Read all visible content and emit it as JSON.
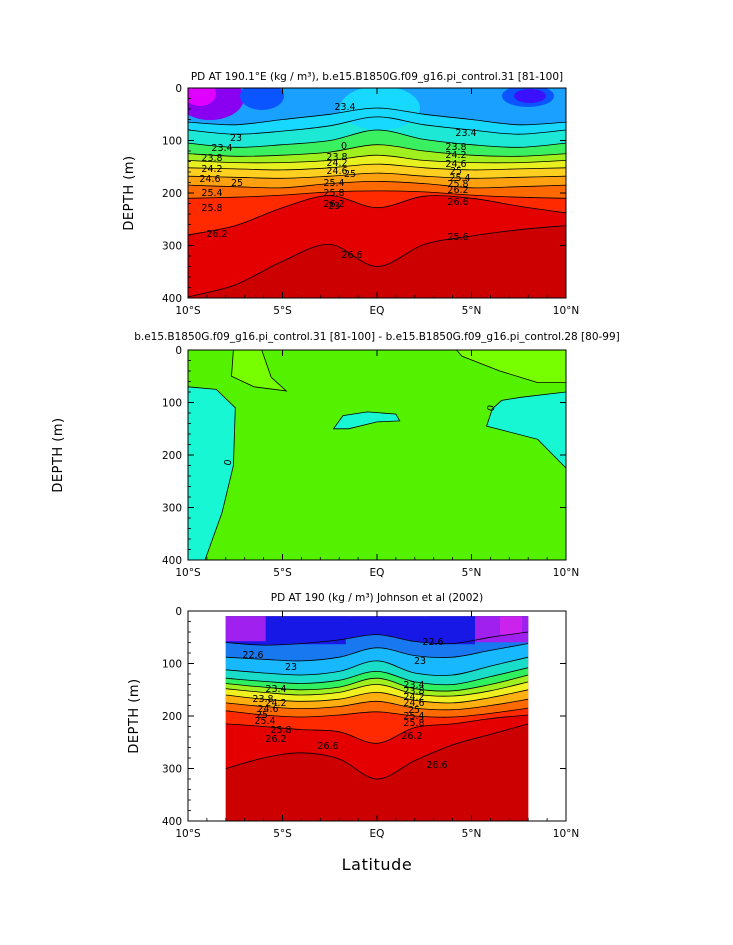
{
  "figure_xlabel": "Latitude",
  "colors": {
    "panel1_bands": [
      "#e000ff",
      "#8a00f0",
      "#3a10ff",
      "#0a55ff",
      "#1aa0ff",
      "#17d8ff",
      "#1de8d6",
      "#3af060",
      "#a0f020",
      "#e8f020",
      "#ffd020",
      "#ffa010",
      "#ff6a00",
      "#ff2a00",
      "#e40000",
      "#cc0000"
    ],
    "panel2": {
      "main": "#55f200",
      "low": "#18f7d3",
      "high": "#77ff00"
    },
    "panel3_bands": [
      "#a020f0",
      "#1818e6",
      "#1878f0",
      "#18b8ff",
      "#19ddc8",
      "#30f060",
      "#a0f020",
      "#f0f020",
      "#ffb010",
      "#ff6a00",
      "#ff2a00",
      "#e40000",
      "#cc0000"
    ]
  },
  "chart_data": [
    {
      "type": "contour",
      "title": "PD AT 190.1°E (kg / m³), b.e15.B1850G.f09_g16.pi_control.31 [81-100]",
      "xlabel": "",
      "ylabel": "DEPTH (m)",
      "x_range": [
        -10,
        10
      ],
      "y_range": [
        400,
        0
      ],
      "x_ticks": [
        {
          "value": -10,
          "label": "10°S"
        },
        {
          "value": -5,
          "label": "5°S"
        },
        {
          "value": 0,
          "label": "EQ"
        },
        {
          "value": 5,
          "label": "5°N"
        },
        {
          "value": 10,
          "label": "10°N"
        }
      ],
      "y_ticks": [
        {
          "value": 0,
          "label": "0"
        },
        {
          "value": 100,
          "label": "100"
        },
        {
          "value": 200,
          "label": "200"
        },
        {
          "value": 300,
          "label": "300"
        },
        {
          "value": 400,
          "label": "400"
        }
      ],
      "isopycnal_depths": {
        "lat": [
          -10,
          -7.5,
          -5,
          -2.5,
          0,
          2.5,
          5,
          7.5,
          10
        ],
        "levels": [
          {
            "value": 22.6,
            "depth": [
              65,
              70,
              60,
              50,
              38,
              50,
              60,
              70,
              65
            ]
          },
          {
            "value": 23.0,
            "depth": [
              80,
              88,
              82,
              72,
              55,
              70,
              80,
              88,
              80
            ]
          },
          {
            "value": 23.4,
            "depth": [
              105,
              113,
              108,
              100,
              80,
              98,
              108,
              113,
              105
            ]
          },
          {
            "value": 23.8,
            "depth": [
              125,
              130,
              128,
              122,
              108,
              120,
              128,
              130,
              125
            ]
          },
          {
            "value": 24.2,
            "depth": [
              138,
              142,
              142,
              138,
              128,
              138,
              142,
              142,
              138
            ]
          },
          {
            "value": 24.6,
            "depth": [
              152,
              154,
              156,
              152,
              145,
              152,
              156,
              154,
              152
            ]
          },
          {
            "value": 25.0,
            "depth": [
              168,
              170,
              172,
              168,
              162,
              168,
              172,
              170,
              168
            ]
          },
          {
            "value": 25.4,
            "depth": [
              185,
              188,
              190,
              182,
              178,
              182,
              190,
              188,
              185
            ]
          },
          {
            "value": 25.8,
            "depth": [
              210,
              208,
              204,
              198,
              196,
              198,
              204,
              208,
              210
            ]
          },
          {
            "value": 26.2,
            "depth": [
              280,
              262,
              228,
              205,
              228,
              206,
              210,
              225,
              238
            ]
          },
          {
            "value": 26.6,
            "depth": [
              398,
              375,
              330,
              298,
              340,
              298,
              282,
              270,
              262
            ]
          }
        ]
      },
      "contour_labels": [
        "23",
        "23.4",
        "23.8",
        "24.2",
        "24.6",
        "25",
        "25.4",
        "25.8",
        "26.2",
        "23.4",
        "23.8",
        "24.2",
        "24.6",
        "25",
        "25.4",
        "25.8",
        "26.2",
        "23",
        "23.4",
        "23.8",
        "24.2",
        "24.6",
        "25",
        "25.4",
        "25.8",
        "26.2",
        "26.6",
        "25.6",
        "26.6"
      ]
    },
    {
      "type": "contour",
      "title": "b.e15.B1850G.f09_g16.pi_control.31 [81-100] - b.e15.B1850G.f09_g16.pi_control.28 [80-99]",
      "xlabel": "",
      "ylabel": "DEPTH (m)",
      "x_range": [
        -10,
        10
      ],
      "y_range": [
        400,
        0
      ],
      "x_ticks": [
        {
          "value": -10,
          "label": "10°S"
        },
        {
          "value": -5,
          "label": "5°S"
        },
        {
          "value": 0,
          "label": "EQ"
        },
        {
          "value": 5,
          "label": "5°N"
        },
        {
          "value": 10,
          "label": "10°N"
        }
      ],
      "y_ticks": [
        {
          "value": 0,
          "label": "0"
        },
        {
          "value": 100,
          "label": "100"
        },
        {
          "value": 200,
          "label": "200"
        },
        {
          "value": 300,
          "label": "300"
        },
        {
          "value": 400,
          "label": "400"
        }
      ],
      "regions": [
        {
          "name": "west-negative",
          "sign": "negative",
          "boundary": [
            [
              -10,
              70
            ],
            [
              -8.5,
              75
            ],
            [
              -7.5,
              110
            ],
            [
              -7.6,
              220
            ],
            [
              -8.2,
              310
            ],
            [
              -9.1,
              400
            ],
            [
              -10,
              400
            ]
          ]
        },
        {
          "name": "central-negative",
          "sign": "negative",
          "boundary": [
            [
              -2.3,
              150
            ],
            [
              -1.8,
              125
            ],
            [
              -0.5,
              118
            ],
            [
              1.0,
              122
            ],
            [
              1.2,
              135
            ],
            [
              0,
              137
            ],
            [
              -1.5,
              150
            ]
          ]
        },
        {
          "name": "east-negative",
          "sign": "negative",
          "boundary": [
            [
              5.8,
              145
            ],
            [
              6.1,
              112
            ],
            [
              6.6,
              96
            ],
            [
              7.6,
              90
            ],
            [
              10,
              80
            ],
            [
              10,
              225
            ],
            [
              8.5,
              170
            ]
          ]
        },
        {
          "name": "west-positive",
          "sign": "positive",
          "boundary": [
            [
              -7.6,
              0
            ],
            [
              -7.7,
              50
            ],
            [
              -6.5,
              70
            ],
            [
              -4.8,
              78
            ],
            [
              -5.6,
              52
            ],
            [
              -6.1,
              0
            ]
          ]
        },
        {
          "name": "east-positive",
          "sign": "positive",
          "boundary": [
            [
              4.2,
              0
            ],
            [
              4.5,
              12
            ],
            [
              6.5,
              40
            ],
            [
              8.5,
              62
            ],
            [
              10,
              62
            ],
            [
              10,
              0
            ]
          ]
        }
      ],
      "contour_labels": [
        "0",
        "0",
        "0"
      ]
    },
    {
      "type": "contour",
      "title": "PD AT 190 (kg / m³) Johnson et al (2002)",
      "xlabel": "Latitude",
      "ylabel": "DEPTH (m)",
      "x_range": [
        -10,
        10
      ],
      "y_range": [
        400,
        0
      ],
      "data_extent": {
        "lat": [
          -8,
          8
        ],
        "depth": [
          10,
          400
        ]
      },
      "x_ticks": [
        {
          "value": -10,
          "label": "10°S"
        },
        {
          "value": -5,
          "label": "5°S"
        },
        {
          "value": 0,
          "label": "EQ"
        },
        {
          "value": 5,
          "label": "5°N"
        },
        {
          "value": 10,
          "label": "10°N"
        }
      ],
      "y_ticks": [
        {
          "value": 0,
          "label": "0"
        },
        {
          "value": 100,
          "label": "100"
        },
        {
          "value": 200,
          "label": "200"
        },
        {
          "value": 300,
          "label": "300"
        },
        {
          "value": 400,
          "label": "400"
        }
      ],
      "isopycnal_depths": {
        "lat": [
          -8,
          -6,
          -4,
          -2,
          0,
          2,
          4,
          6,
          8
        ],
        "levels": [
          {
            "value": 22.6,
            "depth": [
              60,
              65,
              62,
              55,
              45,
              58,
              62,
              50,
              40
            ]
          },
          {
            "value": 23.0,
            "depth": [
              88,
              92,
              95,
              88,
              70,
              85,
              88,
              75,
              62
            ]
          },
          {
            "value": 23.4,
            "depth": [
              112,
              118,
              122,
              115,
              95,
              118,
              122,
              105,
              88
            ]
          },
          {
            "value": 23.8,
            "depth": [
              128,
              134,
              138,
              132,
              115,
              135,
              140,
              125,
              108
            ]
          },
          {
            "value": 24.2,
            "depth": [
              138,
              145,
              150,
              145,
              128,
              148,
              152,
              140,
              122
            ]
          },
          {
            "value": 24.6,
            "depth": [
              148,
              155,
              160,
              155,
              140,
              158,
              162,
              152,
              135
            ]
          },
          {
            "value": 25.0,
            "depth": [
              160,
              168,
              172,
              168,
              155,
              170,
              175,
              165,
              150
            ]
          },
          {
            "value": 25.4,
            "depth": [
              175,
              182,
              186,
              182,
              172,
              185,
              188,
              180,
              168
            ]
          },
          {
            "value": 25.8,
            "depth": [
              190,
              198,
              202,
              198,
              192,
              200,
              202,
              195,
              185
            ]
          },
          {
            "value": 26.2,
            "depth": [
              215,
              220,
              226,
              230,
              252,
              222,
              215,
              205,
              198
            ]
          },
          {
            "value": 26.6,
            "depth": [
              300,
              280,
              270,
              282,
              320,
              285,
              255,
              235,
              215
            ]
          }
        ]
      },
      "contour_labels": [
        "22.6",
        "23",
        "23.4",
        "23.8",
        "24.2",
        "24.6",
        "25",
        "25.4",
        "25.8",
        "26.2",
        "22.6",
        "23",
        "23.4",
        "23.8",
        "24.2",
        "24.6",
        "25",
        "25.4",
        "25.8",
        "26.2",
        "26.6",
        "26.6"
      ]
    }
  ]
}
